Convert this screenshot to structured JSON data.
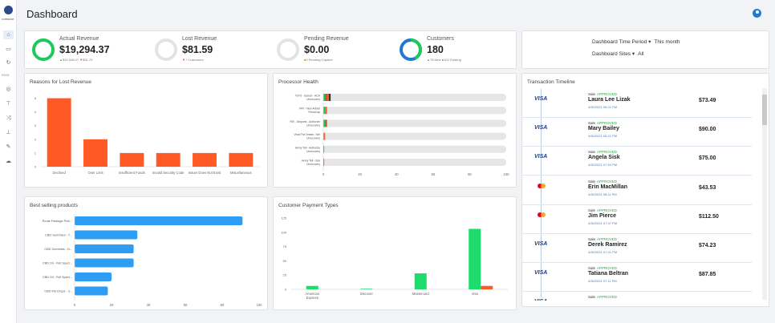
{
  "header": {
    "title": "Dashboard"
  },
  "rail": {
    "logo_text": "curbstone",
    "group1": "PAYM",
    "group2": "TOOLS"
  },
  "kpis": [
    {
      "label": "Actual Revenue",
      "value": "$19,294.37",
      "sub_up": "$19,346.07",
      "sub_down": "$51.70",
      "ring_color": "#1ec95b",
      "ring_fill": 1.0
    },
    {
      "label": "Lost Revenue",
      "value": "$81.59",
      "sub_down": "7 Customers",
      "ring_color": "#e3e3e3",
      "ring_fill": 0
    },
    {
      "label": "Pending Revenue",
      "value": "$0.00",
      "sub_warn": "0 Pending Capture",
      "ring_color": "#e3e3e3",
      "ring_fill": 0
    },
    {
      "label": "Customers",
      "value": "180",
      "sub_up": "78 New",
      "sub_info": "102 Existing",
      "ring_color": "#1f7ad6",
      "ring_color2": "#1ec95b",
      "ring_fill": 0.57
    }
  ],
  "filters": {
    "period_label": "Dashboard Time Period",
    "period_value": "This month",
    "sites_label": "Dashboard Sites",
    "sites_value": "All"
  },
  "panels": {
    "lost": "Reasons for Lost Revenue",
    "processor": "Processor Health",
    "timeline": "Transaction Timeline",
    "products": "Best selling products",
    "payments": "Customer Payment Types"
  },
  "chart_data": [
    {
      "type": "bar",
      "title": "Reasons for Lost Revenue",
      "categories": [
        "Declined",
        "Over Limit",
        "Insufficient Funds",
        "Invalid Security Code",
        "Issuer Does Not Exist",
        "Miscellaneous"
      ],
      "values": [
        5,
        2,
        1,
        1,
        1,
        1
      ],
      "yticks": [
        0,
        1,
        2,
        3,
        4,
        5
      ],
      "ylim": [
        0,
        5.5
      ],
      "color": "#ff5a25"
    },
    {
      "type": "bar",
      "title": "Processor Health",
      "orientation": "horizontal",
      "categories": [
        [
          "TSYS - Elavon - ACH",
          "Unrecovery"
        ],
        [
          "PAY - New Adrian",
          "PrimaCap"
        ],
        [
          "PAY - Bequest - Authorize",
          "Unrecovery"
        ],
        [
          "Vivat The Dream - Nel",
          "Unrecovery"
        ],
        [
          "Henry Tell - Authorize",
          "Unrecovery"
        ],
        [
          "Henry Tell - Nok",
          "Unrecovery"
        ]
      ],
      "series": [
        {
          "values": [
            1,
            1,
            1,
            0.5,
            0.5,
            0
          ],
          "color": "#1ec95b"
        },
        {
          "values": [
            1,
            0,
            1,
            0,
            0,
            0
          ],
          "color": "#b05a1e"
        },
        {
          "values": [
            1,
            1,
            0,
            0.5,
            0,
            0.5
          ],
          "color": "#ff5a25"
        },
        {
          "values": [
            1,
            0,
            0,
            0,
            0,
            0
          ],
          "color": "#333333"
        }
      ],
      "xticks": [
        0,
        20,
        40,
        60,
        80,
        100
      ],
      "xlim": [
        0,
        100
      ]
    },
    {
      "type": "bar",
      "title": "Best selling products",
      "orientation": "horizontal",
      "categories": [
        "Route Package Pick...",
        "CBD Gummies - Y...",
        "CBD Gummies - N...",
        "CBD Oil - Full Spect...",
        "CBD Oil - Full Spect...",
        "CBD Pet Drops - 3..."
      ],
      "values": [
        91,
        34,
        32,
        32,
        20,
        18
      ],
      "xticks": [
        0,
        20,
        40,
        60,
        80,
        100
      ],
      "xlim": [
        0,
        100
      ],
      "color": "#2e9ef5"
    },
    {
      "type": "bar",
      "title": "Customer Payment Types",
      "categories": [
        "American Express",
        "Discover",
        "Mastercard",
        "Visa"
      ],
      "series": [
        {
          "values": [
            6,
            1,
            28,
            106
          ],
          "color": "#1ddc6b"
        },
        {
          "values": [
            0,
            0,
            0,
            6
          ],
          "color": "#ff5a25"
        }
      ],
      "yticks": [
        0,
        25,
        50,
        75,
        100,
        125
      ],
      "ylim": [
        0,
        125
      ]
    }
  ],
  "timeline": [
    {
      "brand": "VISA",
      "type": "Sale",
      "status": "APPROVED",
      "name": "Laura Lee Lizak",
      "date": "4/30/2021 08:21 PM",
      "amount": "$73.49"
    },
    {
      "brand": "VISA",
      "type": "Sale",
      "status": "APPROVED",
      "name": "Mary Bailey",
      "date": "4/30/2021 08:21 PM",
      "amount": "$90.00"
    },
    {
      "brand": "VISA",
      "type": "Sale",
      "status": "APPROVED",
      "name": "Angela Sisk",
      "date": "4/30/2021 07:53 PM",
      "amount": "$75.00"
    },
    {
      "brand": "MC",
      "type": "Sale",
      "status": "APPROVED",
      "name": "Erin MacMillan",
      "date": "4/30/2021 08:11 PM",
      "amount": "$43.53"
    },
    {
      "brand": "MC",
      "type": "Sale",
      "status": "APPROVED",
      "name": "Jim Pierce",
      "date": "4/30/2021 07:37 PM",
      "amount": "$112.50"
    },
    {
      "brand": "VISA",
      "type": "Sale",
      "status": "APPROVED",
      "name": "Derek Ramirez",
      "date": "4/30/2021 07:31 PM",
      "amount": "$74.23"
    },
    {
      "brand": "VISA",
      "type": "Sale",
      "status": "APPROVED",
      "name": "Tatiana Beltran",
      "date": "4/30/2021 07:11 PM",
      "amount": "$87.85"
    },
    {
      "brand": "VISA",
      "type": "Sale",
      "status": "APPROVED",
      "name": "",
      "date": "",
      "amount": ""
    }
  ]
}
